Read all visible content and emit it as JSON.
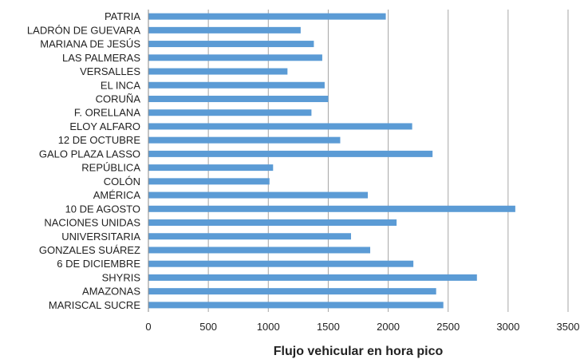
{
  "chart_data": {
    "type": "bar",
    "orientation": "horizontal",
    "categories": [
      "PATRIA",
      "LADRÓN DE GUEVARA",
      "MARIANA DE JESÚS",
      "LAS PALMERAS",
      "VERSALLES",
      "EL INCA",
      "CORUÑA",
      "F. ORELLANA",
      "ELOY ALFARO",
      "12 DE OCTUBRE",
      "GALO PLAZA LASSO",
      "REPÚBLICA",
      "COLÓN",
      "AMÉRICA",
      "10 DE AGOSTO",
      "NACIONES UNIDAS",
      "UNIVERSITARIA",
      "GONZALES SUÁREZ",
      "6 DE DICIEMBRE",
      "SHYRIS",
      "AMAZONAS",
      "MARISCAL SUCRE"
    ],
    "values": [
      1980,
      1270,
      1380,
      1450,
      1160,
      1470,
      1500,
      1360,
      2200,
      1600,
      2370,
      1040,
      1010,
      1830,
      3060,
      2070,
      1690,
      1850,
      2210,
      2740,
      2400,
      2460
    ],
    "xlabel": "Flujo vehicular en hora pico",
    "ylabel": "",
    "xlim": [
      0,
      3500
    ],
    "xticks": [
      "0",
      "500",
      "1000",
      "1500",
      "2000",
      "2500",
      "3000",
      "3500"
    ],
    "tick_values": [
      0,
      500,
      1000,
      1500,
      2000,
      2500,
      3000,
      3500
    ],
    "grid": true,
    "legend": false,
    "bar_color": "#5b9bd5",
    "grid_color": "#a6a6a6",
    "axis_color": "#888888"
  }
}
